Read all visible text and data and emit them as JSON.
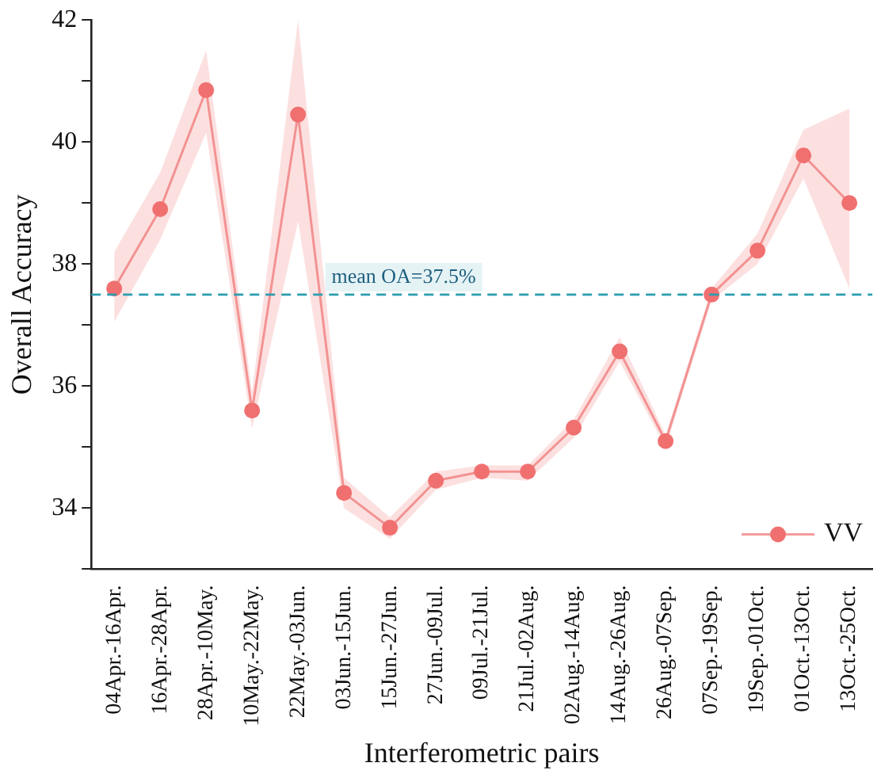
{
  "chart_data": {
    "type": "line",
    "xlabel": "Interferometric pairs",
    "ylabel": "Overall Accuracy",
    "categories": [
      "04Apr.-16Apr.",
      "16Apr.-28Apr.",
      "28Apr.-10May.",
      "10May.-22May.",
      "22May.-03Jun.",
      "03Jun.-15Jun.",
      "15Jun.-27Jun.",
      "27Jun.-09Jul.",
      "09Jul.-21Jul.",
      "21Jul.-02Aug.",
      "02Aug.-14Aug.",
      "14Aug.-26Aug.",
      "26Aug.-07Sep.",
      "07Sep.-19Sep.",
      "19Sep.-01Oct.",
      "01Oct.-13Oct.",
      "13Oct.-25Oct."
    ],
    "series": [
      {
        "name": "VV",
        "color": "#f07070",
        "values": [
          37.6,
          38.9,
          40.85,
          35.6,
          40.45,
          34.25,
          33.68,
          34.45,
          34.6,
          34.6,
          35.32,
          36.57,
          35.1,
          37.5,
          38.22,
          39.78,
          39.0
        ],
        "lower": [
          37.05,
          38.4,
          40.15,
          35.3,
          38.7,
          34.0,
          33.5,
          34.3,
          34.5,
          34.45,
          35.15,
          36.4,
          35.0,
          37.4,
          38.0,
          39.4,
          37.6
        ],
        "upper": [
          38.2,
          39.5,
          41.5,
          35.9,
          42.0,
          34.5,
          33.85,
          34.6,
          34.7,
          34.7,
          35.45,
          36.8,
          35.2,
          37.6,
          38.5,
          40.2,
          40.55
        ]
      }
    ],
    "ylim": [
      33,
      42
    ],
    "yticks": [
      {
        "value": 33,
        "label": null
      },
      34,
      {
        "value": 35,
        "label": null
      },
      36,
      {
        "value": 37,
        "label": null
      },
      38,
      {
        "value": 39,
        "label": null
      },
      40,
      {
        "value": 41,
        "label": null
      },
      42
    ],
    "ref_lines": [
      {
        "axis": "y",
        "value": 37.5,
        "label": "mean OA=37.5%",
        "color": "#2a9db0",
        "line_style": "dashed"
      }
    ],
    "marker": "circle",
    "line_style": "solid",
    "grid": false,
    "legend": "bottom right"
  }
}
